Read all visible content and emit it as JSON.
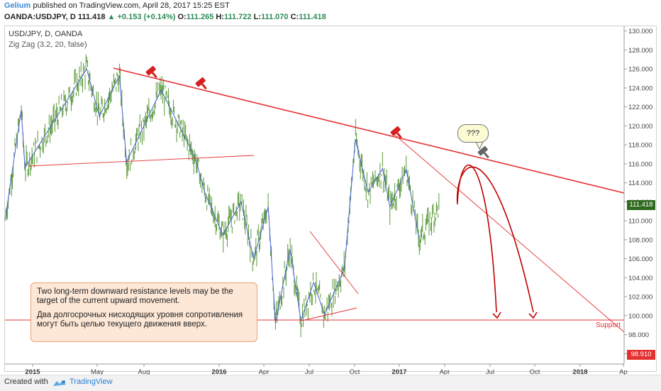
{
  "header": {
    "author": "Gelium",
    "published": "published on TradingView.com, April 28, 2017 15:25 EST",
    "symbol_line": "OANDA:USDJPY, D",
    "last": "111.418",
    "change": "▲ +0.153 (+0.14%)",
    "o_label": "O:",
    "o_val": "111.265",
    "h_label": "H:",
    "h_val": "111.722",
    "l_label": "L:",
    "l_val": "111.070",
    "c_label": "C:",
    "c_val": "111.418"
  },
  "chart_title": "USD/JPY, D, OANDA",
  "indicator_title": "Zig Zag (3.2, 20, false)",
  "note_en": "Two long-term downward resistance levels may be the target of the current upward movement.",
  "note_ru": "Два долгосрочных нисходящих уровня сопротивления могут быть целью текущего движения вверх.",
  "bubble_text": "???",
  "support_label": "Support",
  "price_tag": "111.418",
  "support_tag": "98.910",
  "footer": {
    "created": "Created with",
    "brand": "TradingView"
  },
  "colors": {
    "candle": "#5a9a3a",
    "zigzag": "#4a5fd0",
    "trend": "#e53030",
    "price_tag": "#2e6b1f"
  },
  "chart_data": {
    "type": "line",
    "title": "USD/JPY, D, OANDA",
    "x_ticks": [
      "2015",
      "May",
      "Aug",
      "2016",
      "Apr",
      "Jul",
      "Oct",
      "2017",
      "Apr",
      "Jul",
      "Oct",
      "2018",
      "Ap"
    ],
    "y_ticks": [
      "130.000",
      "128.000",
      "126.000",
      "124.000",
      "122.000",
      "120.000",
      "118.000",
      "116.000",
      "114.000",
      "112.000",
      "110.000",
      "108.000",
      "106.000",
      "104.000",
      "102.000",
      "100.000",
      "98.000",
      "96.000"
    ],
    "ylim": [
      95.5,
      130.5
    ],
    "last_price": 111.418,
    "support": 98.91,
    "series": [
      {
        "name": "Zig Zag (3.2, 20, false)",
        "points": [
          {
            "t": 0.0,
            "y": 110.0
          },
          {
            "t": 0.09,
            "y": 121.7
          },
          {
            "t": 0.11,
            "y": 115.6
          },
          {
            "t": 0.45,
            "y": 126.0
          },
          {
            "t": 0.52,
            "y": 121.0
          },
          {
            "t": 0.63,
            "y": 125.3
          },
          {
            "t": 0.67,
            "y": 116.2
          },
          {
            "t": 0.86,
            "y": 123.8
          },
          {
            "t": 1.05,
            "y": 116.5
          },
          {
            "t": 1.1,
            "y": 113.0
          },
          {
            "t": 1.2,
            "y": 108.5
          },
          {
            "t": 1.3,
            "y": 112.0
          },
          {
            "t": 1.37,
            "y": 106.0
          },
          {
            "t": 1.45,
            "y": 111.5
          },
          {
            "t": 1.49,
            "y": 99.2
          },
          {
            "t": 1.57,
            "y": 107.0
          },
          {
            "t": 1.63,
            "y": 99.5
          },
          {
            "t": 1.7,
            "y": 103.5
          },
          {
            "t": 1.76,
            "y": 100.1
          },
          {
            "t": 1.87,
            "y": 105.0
          },
          {
            "t": 1.93,
            "y": 118.6
          },
          {
            "t": 2.0,
            "y": 113.0
          },
          {
            "t": 2.08,
            "y": 115.5
          },
          {
            "t": 2.12,
            "y": 111.5
          },
          {
            "t": 2.21,
            "y": 115.4
          },
          {
            "t": 2.28,
            "y": 108.2
          }
        ]
      }
    ]
  }
}
